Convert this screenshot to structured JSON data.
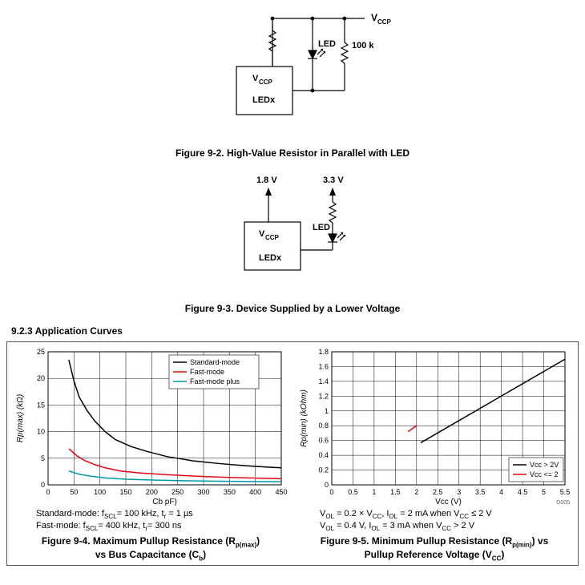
{
  "figure_9_2": {
    "title": "Figure 9-2. High-Value Resistor in Parallel with LED",
    "labels": {
      "vccp_top": "V",
      "vccp_top_sub": "CCP",
      "led_text": "LED",
      "r_value": "100 k",
      "box_vccp": "V",
      "box_vccp_sub": "CCP",
      "box_ledx": "LEDx"
    },
    "colors": {
      "line": "#000000",
      "box_fill": "#ffffff"
    }
  },
  "figure_9_3": {
    "title": "Figure 9-3. Device Supplied by a Lower Voltage",
    "labels": {
      "v1": "1.8 V",
      "v2": "3.3 V",
      "led_text": "LED",
      "box_vccp": "V",
      "box_vccp_sub": "CCP",
      "box_ledx": "LEDx"
    },
    "colors": {
      "line": "#000000"
    }
  },
  "section_heading": "9.2.3 Application Curves",
  "figure_9_4": {
    "title_l1": "Figure 9-4. Maximum Pullup Resistance (R",
    "title_sub": "p(max)",
    "title_l1b": ")",
    "title_l2": "vs Bus Capacitance (C",
    "title_l2_sub": "b",
    "title_l2b": ")",
    "notes": [
      "Standard-mode: f<sub>SCL</sub>= 100 kHz, t<sub>r</sub> = 1 µs",
      "Fast-mode: f<sub>SCL</sub>= 400 kHz, t<sub>r</sub>= 300 ns"
    ],
    "xlabel": "C",
    "xlabel_sub": "b",
    "xlabel_unit": " pF)",
    "ylabel": "R",
    "ylabel_sub": "p(max)",
    "ylabel_unit": " (kΩ)",
    "xlim": [
      0,
      450
    ],
    "ylim": [
      0,
      25
    ],
    "xticks": [
      0,
      50,
      100,
      150,
      200,
      250,
      300,
      350,
      400,
      450
    ],
    "yticks": [
      0,
      5,
      10,
      15,
      20,
      25
    ],
    "legend": [
      "Standard-mode",
      "Fast-mode",
      "Fast-mode plus"
    ],
    "series_colors": [
      "#000000",
      "#e30613",
      "#009aa6"
    ],
    "background": "#ffffff",
    "grid_color": "#000000",
    "data": {
      "standard": [
        [
          40,
          23.5
        ],
        [
          50,
          19.5
        ],
        [
          60,
          16.5
        ],
        [
          75,
          14
        ],
        [
          90,
          12
        ],
        [
          110,
          10
        ],
        [
          130,
          8.5
        ],
        [
          160,
          7.2
        ],
        [
          190,
          6.3
        ],
        [
          230,
          5.3
        ],
        [
          280,
          4.5
        ],
        [
          330,
          4.0
        ],
        [
          380,
          3.6
        ],
        [
          430,
          3.3
        ],
        [
          450,
          3.2
        ]
      ],
      "fast": [
        [
          40,
          6.8
        ],
        [
          55,
          5.5
        ],
        [
          70,
          4.6
        ],
        [
          90,
          3.8
        ],
        [
          110,
          3.2
        ],
        [
          140,
          2.6
        ],
        [
          180,
          2.2
        ],
        [
          230,
          1.9
        ],
        [
          290,
          1.6
        ],
        [
          350,
          1.4
        ],
        [
          410,
          1.25
        ],
        [
          450,
          1.15
        ]
      ],
      "fastplus": [
        [
          40,
          2.6
        ],
        [
          60,
          2.0
        ],
        [
          80,
          1.65
        ],
        [
          110,
          1.3
        ],
        [
          150,
          1.05
        ],
        [
          200,
          0.9
        ],
        [
          260,
          0.78
        ],
        [
          330,
          0.68
        ],
        [
          400,
          0.62
        ],
        [
          450,
          0.58
        ]
      ]
    }
  },
  "figure_9_5": {
    "title_l1": "Figure 9-5. Minimum Pullup Resistance (R",
    "title_sub": "p(min)",
    "title_l1b": ") vs",
    "title_l2": "Pullup Reference Voltage (V",
    "title_l2_sub": "CC",
    "title_l2b": ")",
    "notes": [
      "V<sub>OL</sub> = 0.2 × V<sub>CC</sub>, I<sub>OL</sub> = 2 mA when V<sub>CC</sub> ≤ 2 V",
      "V<sub>OL</sub> = 0.4 V, I<sub>OL</sub> = 3 mA when V<sub>CC</sub> > 2 V"
    ],
    "xlabel": "Vcc (V)",
    "ylabel": "R",
    "ylabel_sub": "p(min)",
    "ylabel_unit": " (kOhm)",
    "xlim": [
      0,
      5.5
    ],
    "ylim": [
      0,
      1.8
    ],
    "xticks": [
      0,
      0.5,
      1,
      1.5,
      2,
      2.5,
      3,
      3.5,
      4,
      4.5,
      5,
      5.5
    ],
    "yticks": [
      0,
      0.2,
      0.4,
      0.6,
      0.8,
      1,
      1.2,
      1.4,
      1.6,
      1.8
    ],
    "legend": [
      "Vcc > 2V",
      "Vcc <= 2"
    ],
    "series_colors": [
      "#000000",
      "#e30613"
    ],
    "background": "#ffffff",
    "grid_color": "#000000",
    "data": {
      "vcc_gt2": [
        [
          2.1,
          0.57
        ],
        [
          5.5,
          1.7
        ]
      ],
      "vcc_le2": [
        [
          1.8,
          0.72
        ],
        [
          2.0,
          0.8
        ]
      ]
    },
    "footer_code": "D005"
  }
}
